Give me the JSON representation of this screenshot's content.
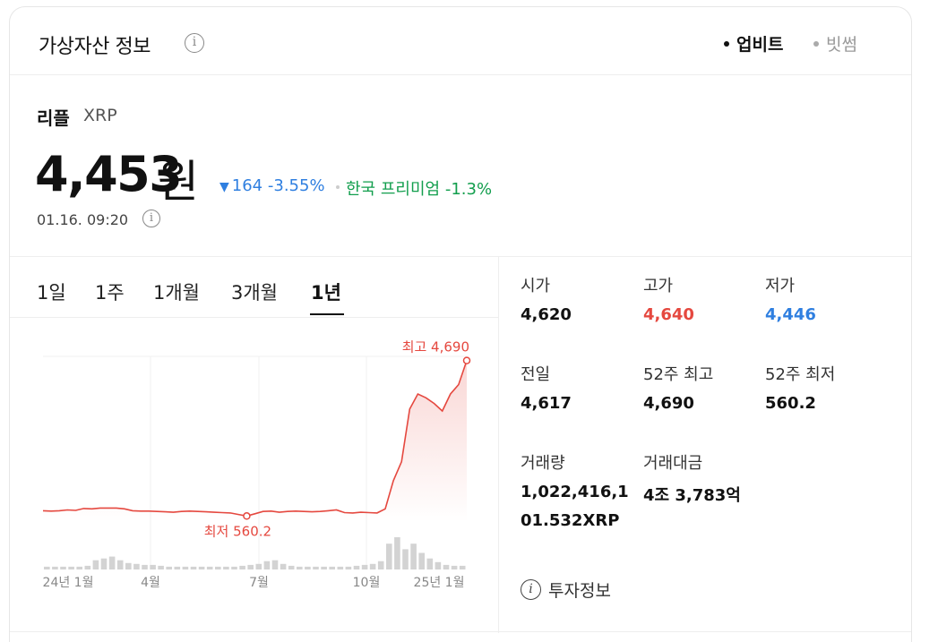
{
  "header": {
    "title": "가상자산 정보",
    "sources": [
      {
        "label": "업비트",
        "active": true
      },
      {
        "label": "빗썸",
        "active": false
      }
    ]
  },
  "coin": {
    "name": "리플",
    "symbol": "XRP",
    "price": "4,453",
    "unit": "원",
    "change": "164",
    "change_pct": "-3.55%",
    "premium_label": "한국 프리미엄",
    "premium_value": "-1.3%",
    "timestamp": "01.16. 09:20"
  },
  "colors": {
    "up": "#e5483f",
    "down": "#2f7fe0",
    "premium": "#129e4d"
  },
  "tabs": [
    {
      "label": "1일",
      "active": false
    },
    {
      "label": "1주",
      "active": false
    },
    {
      "label": "1개월",
      "active": false
    },
    {
      "label": "3개월",
      "active": false
    },
    {
      "label": "1년",
      "active": true
    }
  ],
  "chart_data": {
    "type": "line",
    "x_tick_labels": [
      "24년 1월",
      "4월",
      "7월",
      "10월",
      "25년 1월"
    ],
    "max_label": "최고 4,690",
    "min_label": "최저 560.2",
    "ylim": [
      400,
      4800
    ],
    "series": [
      {
        "values": [
          700,
          690,
          700,
          720,
          710,
          760,
          750,
          770,
          770,
          770,
          750,
          700,
          690,
          690,
          680,
          670,
          660,
          680,
          690,
          680,
          670,
          660,
          650,
          640,
          600,
          560.2,
          620,
          680,
          690,
          660,
          680,
          690,
          680,
          670,
          680,
          700,
          720,
          650,
          640,
          660,
          650,
          640,
          750,
          1500,
          2000,
          3400,
          3800,
          3700,
          3550,
          3350,
          3800,
          4050,
          4690
        ]
      }
    ],
    "volume": [
      3,
      3,
      3,
      3,
      3,
      4,
      10,
      12,
      14,
      10,
      7,
      6,
      5,
      5,
      4,
      3,
      3,
      3,
      3,
      3,
      3,
      3,
      3,
      3,
      4,
      5,
      6,
      9,
      10,
      6,
      4,
      3,
      3,
      3,
      3,
      3,
      3,
      3,
      4,
      5,
      6,
      9,
      28,
      35,
      22,
      28,
      18,
      12,
      8,
      5,
      4,
      4
    ]
  },
  "stats": [
    {
      "label": "시가",
      "value": "4,620",
      "tone": ""
    },
    {
      "label": "고가",
      "value": "4,640",
      "tone": "up"
    },
    {
      "label": "저가",
      "value": "4,446",
      "tone": "down"
    },
    {
      "label": "전일",
      "value": "4,617",
      "tone": ""
    },
    {
      "label": "52주 최고",
      "value": "4,690",
      "tone": ""
    },
    {
      "label": "52주 최저",
      "value": "560.2",
      "tone": ""
    },
    {
      "label": "거래량",
      "value": "1,022,416,1",
      "value2": "01.532XRP",
      "tone": ""
    },
    {
      "label": "거래대금",
      "value": "4조 3,783억",
      "tone": ""
    }
  ],
  "invest_link": "투자정보"
}
